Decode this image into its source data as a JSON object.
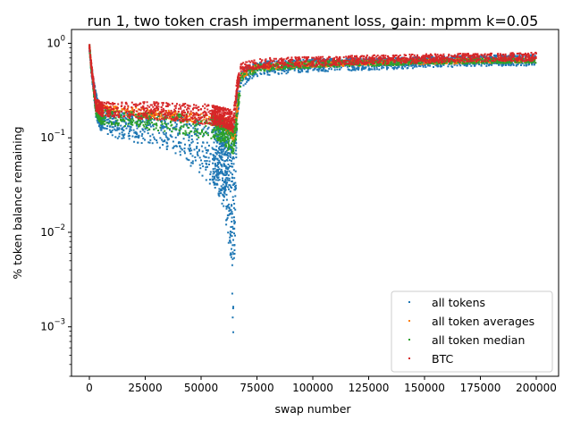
{
  "chart_data": {
    "type": "scatter",
    "title": "run 1, two token crash impermanent loss, gain: mpmm k=0.05",
    "xlabel": "swap number",
    "ylabel": "% token balance remaining",
    "yscale": "log",
    "xlim": [
      -8000,
      210000
    ],
    "ylim": [
      0.0003,
      1.4
    ],
    "xticks": [
      0,
      25000,
      50000,
      75000,
      100000,
      125000,
      150000,
      175000,
      200000
    ],
    "xtick_labels": [
      "0",
      "25000",
      "50000",
      "75000",
      "100000",
      "125000",
      "150000",
      "175000",
      "200000"
    ],
    "yticks": [
      0.001,
      0.01,
      0.1,
      1
    ],
    "ytick_labels": [
      "10",
      "10",
      "10",
      "10"
    ],
    "ytick_exponents": [
      "−3",
      "−2",
      "−1",
      "0"
    ],
    "legend_position": "lower right",
    "grid": false,
    "series": [
      {
        "name": "all tokens",
        "color": "#1f77b4",
        "profile": {
          "x": [
            0,
            1000,
            3000,
            5000,
            10000,
            20000,
            30000,
            40000,
            50000,
            55000,
            60000,
            63000,
            64500,
            66000,
            68000,
            72000,
            80000,
            100000,
            125000,
            150000,
            175000,
            200000
          ],
          "y_low": [
            0.85,
            0.45,
            0.16,
            0.12,
            0.1,
            0.09,
            0.08,
            0.065,
            0.04,
            0.03,
            0.018,
            0.006,
            0.0005,
            0.15,
            0.32,
            0.42,
            0.46,
            0.5,
            0.52,
            0.55,
            0.57,
            0.58
          ],
          "y_high": [
            1.0,
            0.55,
            0.3,
            0.2,
            0.19,
            0.18,
            0.18,
            0.17,
            0.16,
            0.16,
            0.14,
            0.13,
            0.12,
            0.3,
            0.5,
            0.6,
            0.65,
            0.68,
            0.7,
            0.72,
            0.74,
            0.76
          ]
        }
      },
      {
        "name": "all token averages",
        "color": "#ff7f0e",
        "profile": {
          "x": [
            0,
            1000,
            3000,
            5000,
            20000,
            40000,
            60000,
            63000,
            65000,
            68000,
            75000,
            100000,
            150000,
            200000
          ],
          "y_low": [
            0.9,
            0.5,
            0.2,
            0.18,
            0.17,
            0.15,
            0.13,
            0.1,
            0.09,
            0.42,
            0.52,
            0.56,
            0.6,
            0.63
          ],
          "y_high": [
            1.0,
            0.55,
            0.24,
            0.22,
            0.21,
            0.19,
            0.17,
            0.15,
            0.14,
            0.5,
            0.6,
            0.65,
            0.68,
            0.7
          ]
        }
      },
      {
        "name": "all token median",
        "color": "#2ca02c",
        "profile": {
          "x": [
            0,
            1000,
            3000,
            5000,
            20000,
            40000,
            55000,
            60000,
            63000,
            65000,
            68000,
            75000,
            100000,
            150000,
            200000
          ],
          "y_low": [
            0.9,
            0.45,
            0.17,
            0.14,
            0.13,
            0.11,
            0.095,
            0.085,
            0.07,
            0.065,
            0.4,
            0.5,
            0.55,
            0.6,
            0.62
          ],
          "y_high": [
            1.0,
            0.55,
            0.23,
            0.2,
            0.19,
            0.18,
            0.17,
            0.16,
            0.14,
            0.13,
            0.5,
            0.6,
            0.65,
            0.68,
            0.7
          ]
        }
      },
      {
        "name": "BTC",
        "color": "#d62728",
        "profile": {
          "x": [
            0,
            1000,
            3000,
            5000,
            10000,
            20000,
            30000,
            40000,
            50000,
            55000,
            60000,
            63000,
            64500,
            66000,
            68000,
            72000,
            80000,
            100000,
            125000,
            150000,
            175000,
            200000
          ],
          "y_low": [
            0.9,
            0.5,
            0.19,
            0.17,
            0.165,
            0.16,
            0.155,
            0.15,
            0.14,
            0.135,
            0.13,
            0.12,
            0.11,
            0.3,
            0.48,
            0.52,
            0.55,
            0.57,
            0.6,
            0.62,
            0.64,
            0.65
          ],
          "y_high": [
            1.0,
            0.6,
            0.26,
            0.24,
            0.24,
            0.24,
            0.24,
            0.23,
            0.23,
            0.22,
            0.21,
            0.2,
            0.18,
            0.4,
            0.62,
            0.66,
            0.7,
            0.72,
            0.75,
            0.77,
            0.78,
            0.8
          ]
        }
      }
    ]
  }
}
